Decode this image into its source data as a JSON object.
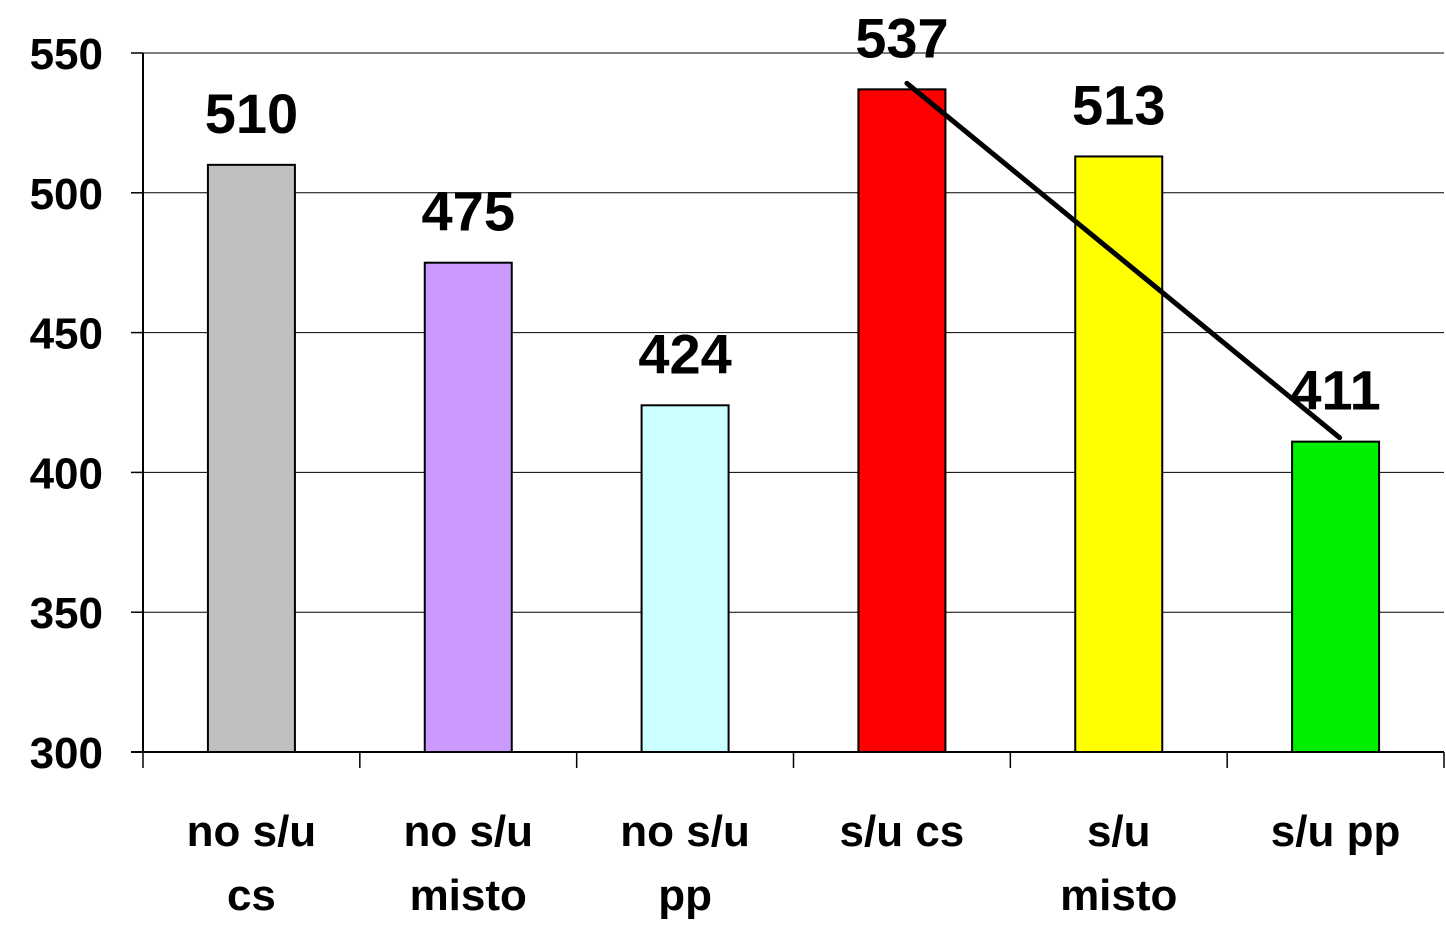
{
  "chart_data": {
    "type": "bar",
    "categories": [
      [
        "no s/u",
        "cs"
      ],
      [
        "no s/u",
        "misto"
      ],
      [
        "no s/u",
        "pp"
      ],
      [
        "s/u cs"
      ],
      [
        "s/u",
        "misto"
      ],
      [
        "s/u pp"
      ]
    ],
    "values": [
      510,
      475,
      424,
      537,
      513,
      411
    ],
    "data_labels": [
      "510",
      "475",
      "424",
      "537",
      "513",
      "411"
    ],
    "bar_colors": [
      "#c0c0c0",
      "#cc99ff",
      "#ccffff",
      "#ff0000",
      "#ffff00",
      "#00ee00"
    ],
    "ylim": [
      300,
      550
    ],
    "yticks": [
      300,
      350,
      400,
      450,
      500,
      550
    ],
    "grid": true,
    "legend": "none",
    "trend_line": {
      "from_category": 3,
      "to_category": 5,
      "from_value": 537,
      "to_value": 411,
      "color": "#000000"
    }
  }
}
